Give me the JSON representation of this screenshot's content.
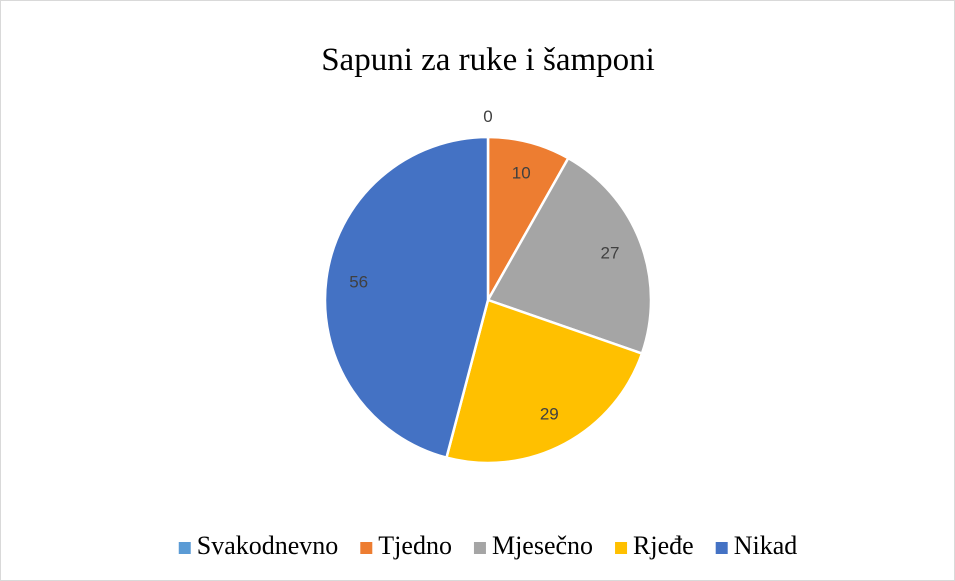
{
  "chart_data": {
    "type": "pie",
    "title": "Sapuni za ruke i šamponi",
    "categories": [
      "Svakodnevno",
      "Tjedno",
      "Mjesečno",
      "Rjeđe",
      "Nikad"
    ],
    "values": [
      0,
      10,
      27,
      29,
      56
    ],
    "colors": [
      "#5b9bd5",
      "#ed7d31",
      "#a5a5a5",
      "#ffc000",
      "#4472c4"
    ],
    "legend": "bottom"
  }
}
